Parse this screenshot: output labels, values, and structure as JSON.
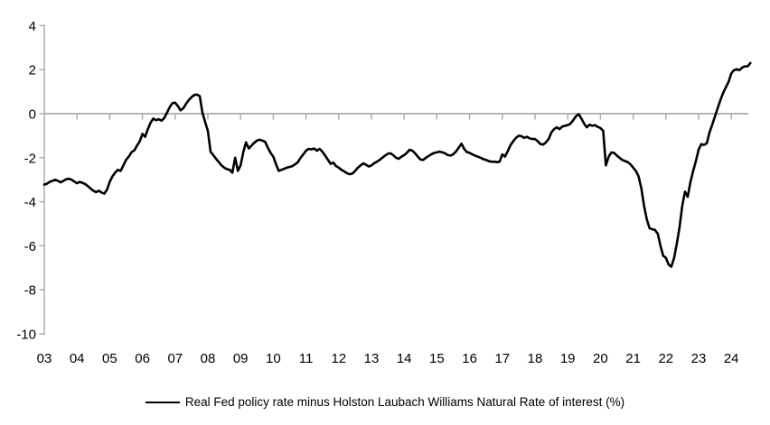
{
  "chart_data": {
    "type": "line",
    "title": "",
    "legend_label": "Real Fed policy rate minus Holston Laubach Williams Natural Rate of interest (%)",
    "legend_position": "bottom-center",
    "grid": "zero-line-only",
    "colors": {
      "series": "#000000",
      "axis": "#a9a9a9",
      "text": "#000000",
      "background": "#ffffff"
    },
    "ylim": [
      -10,
      4
    ],
    "y_ticks": [
      4,
      2,
      0,
      -2,
      -4,
      -6,
      -8,
      -10
    ],
    "y_tick_labels": [
      "4",
      "2",
      "0",
      "-2",
      "-4",
      "-6",
      "-8",
      "-10"
    ],
    "xlim_years": [
      2003.0,
      2024.67
    ],
    "x_tick_labels": [
      "03",
      "04",
      "05",
      "06",
      "07",
      "08",
      "09",
      "10",
      "11",
      "12",
      "13",
      "14",
      "15",
      "16",
      "17",
      "18",
      "19",
      "20",
      "21",
      "22",
      "23",
      "24"
    ],
    "x_tick_label_start_year": 2003,
    "x_tick_mark_years": [
      2004,
      2005,
      2006,
      2007,
      2008,
      2009,
      2010,
      2011,
      2012,
      2013,
      2014,
      2015,
      2016,
      2017,
      2018,
      2019,
      2020,
      2021,
      2022,
      2023,
      2024
    ],
    "series": [
      {
        "name": "Real Fed policy rate minus Holston Laubach Williams Natural Rate of interest (%)",
        "start_year": 2003,
        "frequency": "monthly",
        "values": [
          -3.22,
          -3.18,
          -3.1,
          -3.05,
          -3.0,
          -3.05,
          -3.12,
          -3.05,
          -2.98,
          -2.95,
          -3.0,
          -3.08,
          -3.16,
          -3.1,
          -3.14,
          -3.2,
          -3.29,
          -3.4,
          -3.5,
          -3.56,
          -3.5,
          -3.58,
          -3.63,
          -3.45,
          -3.1,
          -2.85,
          -2.68,
          -2.55,
          -2.6,
          -2.35,
          -2.1,
          -1.95,
          -1.75,
          -1.67,
          -1.45,
          -1.26,
          -0.92,
          -1.05,
          -0.7,
          -0.4,
          -0.22,
          -0.3,
          -0.25,
          -0.32,
          -0.2,
          0.05,
          0.3,
          0.48,
          0.5,
          0.35,
          0.15,
          0.25,
          0.45,
          0.62,
          0.75,
          0.85,
          0.87,
          0.8,
          0.05,
          -0.38,
          -0.78,
          -1.73,
          -1.88,
          -2.05,
          -2.2,
          -2.35,
          -2.45,
          -2.52,
          -2.55,
          -2.68,
          -2.0,
          -2.6,
          -2.35,
          -1.75,
          -1.3,
          -1.58,
          -1.45,
          -1.32,
          -1.22,
          -1.18,
          -1.22,
          -1.28,
          -1.55,
          -1.78,
          -1.95,
          -2.3,
          -2.6,
          -2.55,
          -2.5,
          -2.45,
          -2.42,
          -2.38,
          -2.3,
          -2.2,
          -2.0,
          -1.85,
          -1.68,
          -1.6,
          -1.62,
          -1.58,
          -1.68,
          -1.6,
          -1.72,
          -1.9,
          -2.08,
          -2.28,
          -2.22,
          -2.38,
          -2.45,
          -2.55,
          -2.62,
          -2.7,
          -2.75,
          -2.72,
          -2.6,
          -2.46,
          -2.35,
          -2.26,
          -2.32,
          -2.4,
          -2.35,
          -2.25,
          -2.18,
          -2.1,
          -2.0,
          -1.9,
          -1.82,
          -1.8,
          -1.88,
          -2.0,
          -2.05,
          -1.95,
          -1.88,
          -1.78,
          -1.64,
          -1.68,
          -1.8,
          -1.95,
          -2.08,
          -2.1,
          -2.0,
          -1.92,
          -1.84,
          -1.78,
          -1.76,
          -1.72,
          -1.76,
          -1.8,
          -1.88,
          -1.9,
          -1.84,
          -1.72,
          -1.55,
          -1.36,
          -1.6,
          -1.74,
          -1.78,
          -1.85,
          -1.9,
          -1.95,
          -2.0,
          -2.06,
          -2.1,
          -2.15,
          -2.18,
          -2.18,
          -2.2,
          -2.18,
          -1.85,
          -1.95,
          -1.7,
          -1.43,
          -1.25,
          -1.1,
          -1.0,
          -1.02,
          -1.1,
          -1.05,
          -1.12,
          -1.15,
          -1.15,
          -1.25,
          -1.38,
          -1.4,
          -1.3,
          -1.15,
          -0.85,
          -0.7,
          -0.62,
          -0.7,
          -0.58,
          -0.55,
          -0.52,
          -0.45,
          -0.3,
          -0.12,
          -0.02,
          -0.22,
          -0.45,
          -0.62,
          -0.5,
          -0.55,
          -0.52,
          -0.6,
          -0.65,
          -0.78,
          -2.35,
          -1.95,
          -1.76,
          -1.78,
          -1.9,
          -2.0,
          -2.1,
          -2.15,
          -2.2,
          -2.3,
          -2.45,
          -2.6,
          -2.85,
          -3.4,
          -4.2,
          -4.8,
          -5.2,
          -5.25,
          -5.28,
          -5.45,
          -6.0,
          -6.45,
          -6.55,
          -6.85,
          -6.95,
          -6.55,
          -5.9,
          -5.16,
          -4.19,
          -3.54,
          -3.78,
          -3.1,
          -2.6,
          -2.15,
          -1.63,
          -1.38,
          -1.42,
          -1.34,
          -0.85,
          -0.5,
          -0.12,
          0.25,
          0.61,
          0.95,
          1.2,
          1.45,
          1.83,
          1.98,
          2.02,
          1.98,
          2.1,
          2.15,
          2.15,
          2.3
        ]
      }
    ]
  }
}
